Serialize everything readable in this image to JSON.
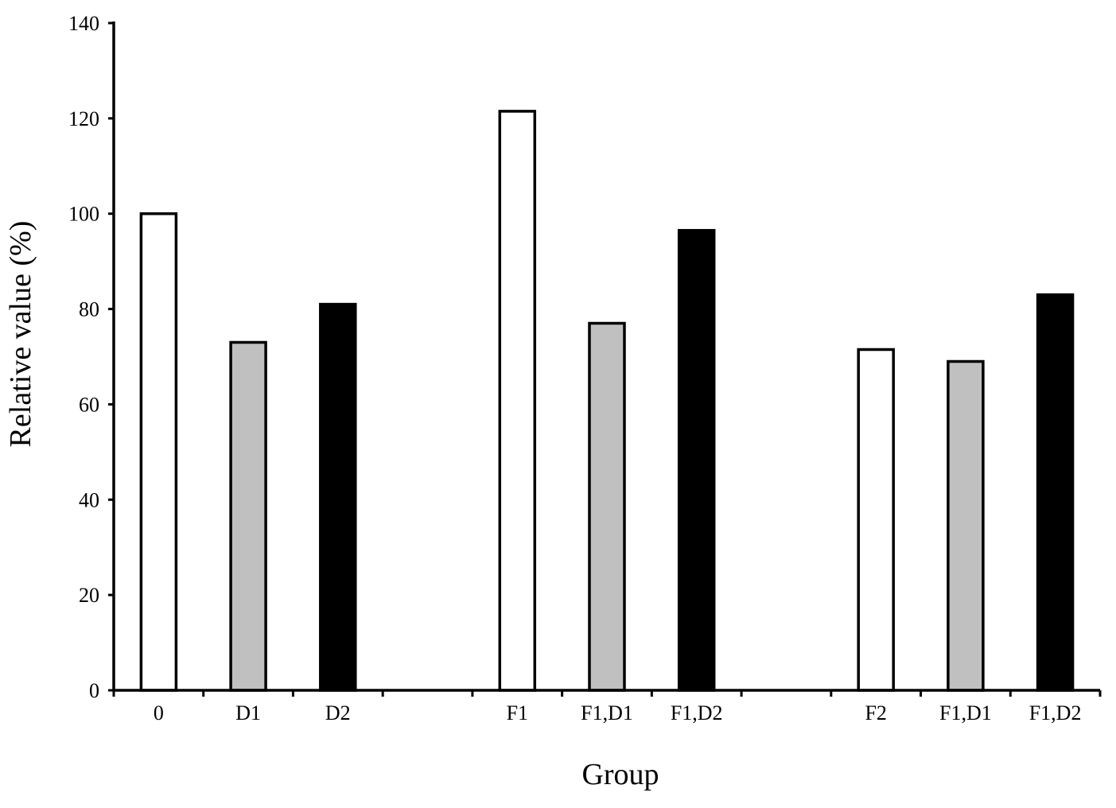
{
  "chart_data": {
    "type": "bar",
    "xlabel": "Group",
    "ylabel": "Relative value (%)",
    "ylim": [
      0,
      140
    ],
    "yticks": [
      0,
      20,
      40,
      60,
      80,
      100,
      120,
      140
    ],
    "grid": false,
    "categories": [
      "0",
      "D1",
      "D2",
      "",
      "F1",
      "F1,D1",
      "F1,D2",
      "",
      "F2",
      "F1,D1",
      "F1,D2"
    ],
    "values": [
      100,
      73,
      81,
      null,
      121.5,
      77,
      96.5,
      null,
      71.5,
      69,
      83
    ],
    "bar_fills": [
      "#ffffff",
      "#c0c0c0",
      "#000000",
      null,
      "#ffffff",
      "#c0c0c0",
      "#000000",
      null,
      "#ffffff",
      "#c0c0c0",
      "#000000"
    ]
  }
}
